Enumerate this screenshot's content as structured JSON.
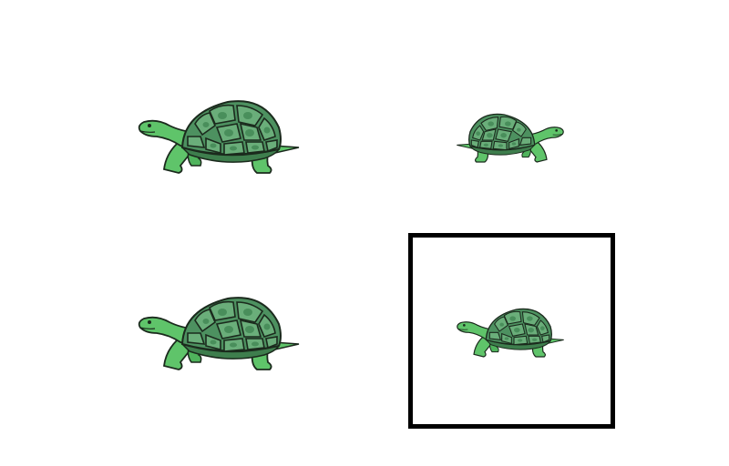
{
  "scene": {
    "icon": "turtle-icon",
    "colors": {
      "body": "#5fc46a",
      "body_dark": "#3e9a4a",
      "shell": "#4d9160",
      "shell_plate": "#6aae7a",
      "shell_plate_inner": "#3f8451",
      "outline": "#1b2a1d"
    },
    "turtles": [
      {
        "id": "top-left",
        "facing": "left"
      },
      {
        "id": "top-right",
        "facing": "right"
      },
      {
        "id": "bottom-left",
        "facing": "left"
      },
      {
        "id": "bottom-right",
        "facing": "left"
      }
    ]
  }
}
